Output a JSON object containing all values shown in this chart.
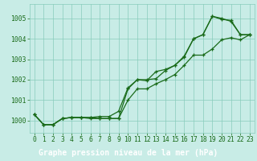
{
  "title": "Graphe pression niveau de la mer (hPa)",
  "yticks": [
    1000,
    1001,
    1002,
    1003,
    1004,
    1005
  ],
  "ylim": [
    999.4,
    1005.7
  ],
  "xlim": [
    -0.5,
    23.5
  ],
  "bg_color": "#c8ece6",
  "grid_color": "#88ccbb",
  "line_color": "#1a6b1a",
  "line1_x": [
    0,
    1,
    2,
    3,
    4,
    5,
    6,
    7,
    8,
    9,
    10,
    11,
    12,
    13,
    14,
    15,
    16,
    17,
    18,
    19,
    20,
    21,
    22,
    23
  ],
  "line1_y": [
    1000.3,
    999.8,
    999.8,
    1000.1,
    1000.15,
    1000.15,
    1000.15,
    1000.1,
    1000.1,
    1000.1,
    1001.55,
    1002.0,
    1002.0,
    1002.05,
    1002.45,
    1002.7,
    1003.1,
    1004.0,
    1004.2,
    1005.1,
    1005.0,
    1004.85,
    1004.2,
    1004.2
  ],
  "line2_x": [
    0,
    1,
    2,
    3,
    4,
    5,
    6,
    7,
    8,
    9,
    10,
    11,
    12,
    13,
    14,
    15,
    16,
    17,
    18,
    19,
    20,
    21,
    22,
    23
  ],
  "line2_y": [
    1000.3,
    999.8,
    999.8,
    1000.1,
    1000.15,
    1000.15,
    1000.15,
    1000.2,
    1000.2,
    1000.45,
    1001.6,
    1002.0,
    1001.95,
    1002.4,
    1002.5,
    1002.7,
    1003.15,
    1004.0,
    1004.2,
    1005.1,
    1004.95,
    1004.9,
    1004.2,
    1004.2
  ],
  "line3_x": [
    0,
    1,
    2,
    3,
    4,
    5,
    6,
    7,
    8,
    9,
    10,
    11,
    12,
    13,
    14,
    15,
    16,
    17,
    18,
    19,
    20,
    21,
    22,
    23
  ],
  "line3_y": [
    1000.3,
    999.8,
    999.8,
    1000.1,
    1000.15,
    1000.15,
    1000.1,
    1000.1,
    1000.1,
    1000.1,
    1001.0,
    1001.55,
    1001.55,
    1001.8,
    1002.0,
    1002.25,
    1002.7,
    1003.2,
    1003.2,
    1003.5,
    1003.95,
    1004.05,
    1003.95,
    1004.2
  ],
  "font_color": "#1a6b1a",
  "label_bg": "#2d8c2d",
  "label_text_color": "#ffffff",
  "tick_fontsize": 5.8,
  "label_fontsize": 7.0
}
